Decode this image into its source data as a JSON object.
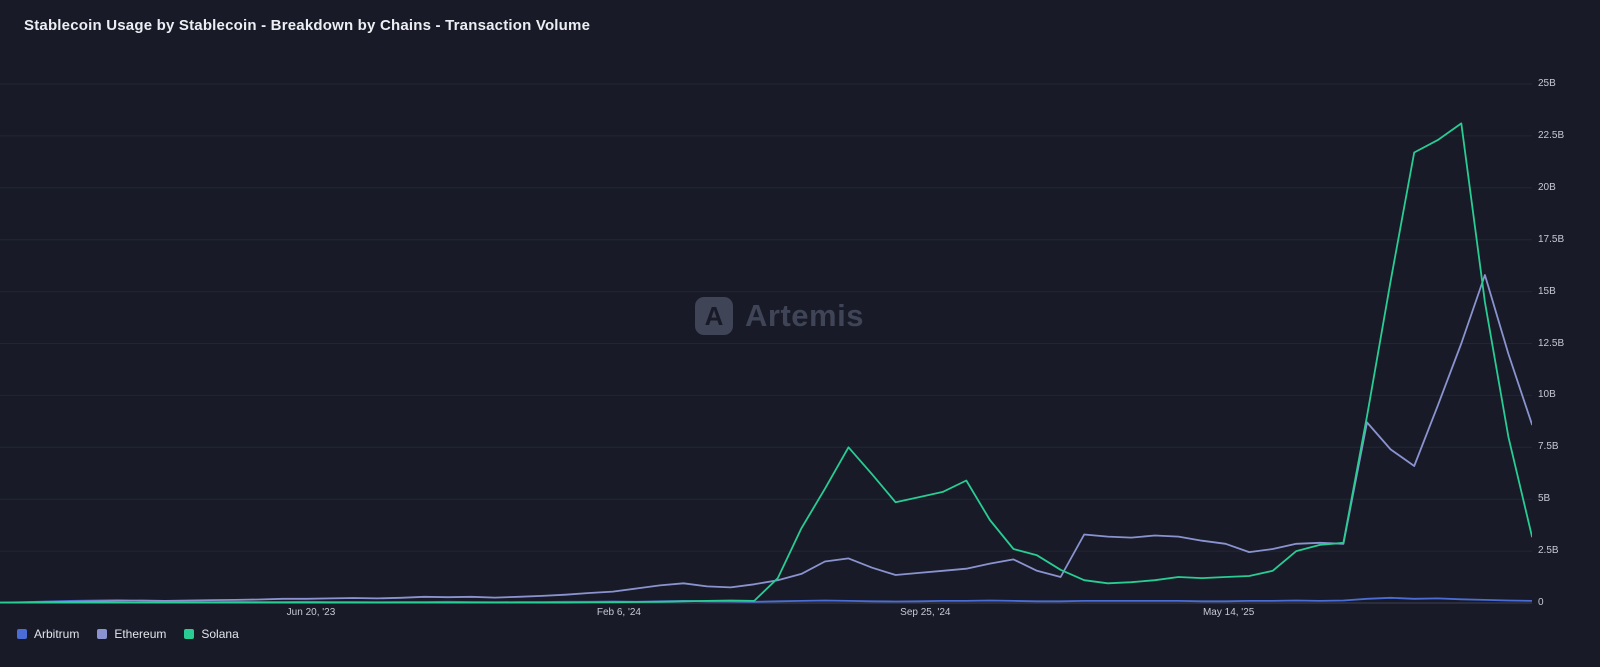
{
  "title": "Stablecoin Usage by Stablecoin - Breakdown by Chains - Transaction Volume",
  "watermark": {
    "brand": "Artemis",
    "logo_letter": "A"
  },
  "chart_data": {
    "type": "line",
    "title": "Stablecoin Usage by Stablecoin - Breakdown by Chains - Transaction Volume",
    "xlabel": "",
    "ylabel": "Transaction Volume",
    "unit": "B",
    "y_max": 25,
    "ylim": [
      0,
      25
    ],
    "grid": true,
    "legend_position": "bottom-left",
    "y_ticks": [
      "0",
      "2.5B",
      "5B",
      "7.5B",
      "10B",
      "12.5B",
      "15B",
      "17.5B",
      "20B",
      "22.5B",
      "25B"
    ],
    "x_ticks": [
      {
        "label": "Jun 20, '23",
        "pos": 0.203
      },
      {
        "label": "Feb 6, '24",
        "pos": 0.404
      },
      {
        "label": "Sep 25, '24",
        "pos": 0.604
      },
      {
        "label": "May 14, '25",
        "pos": 0.802
      }
    ],
    "series": [
      {
        "name": "Arbitrum",
        "color": "#4a6cd4",
        "values": [
          0.02,
          0.04,
          0.07,
          0.1,
          0.12,
          0.14,
          0.1,
          0.08,
          0.06,
          0.05,
          0.06,
          0.05,
          0.05,
          0.06,
          0.05,
          0.05,
          0.04,
          0.05,
          0.05,
          0.06,
          0.05,
          0.04,
          0.05,
          0.05,
          0.06,
          0.06,
          0.07,
          0.06,
          0.08,
          0.1,
          0.08,
          0.07,
          0.06,
          0.08,
          0.1,
          0.12,
          0.1,
          0.08,
          0.07,
          0.08,
          0.1,
          0.1,
          0.12,
          0.1,
          0.08,
          0.08,
          0.1,
          0.1,
          0.1,
          0.1,
          0.1,
          0.08,
          0.08,
          0.1,
          0.1,
          0.12,
          0.1,
          0.12,
          0.2,
          0.25,
          0.2,
          0.22,
          0.18,
          0.15,
          0.12,
          0.1
        ]
      },
      {
        "name": "Ethereum",
        "color": "#8a93cf",
        "values": [
          0.02,
          0.03,
          0.05,
          0.06,
          0.08,
          0.1,
          0.12,
          0.1,
          0.12,
          0.14,
          0.15,
          0.17,
          0.2,
          0.2,
          0.22,
          0.24,
          0.22,
          0.25,
          0.3,
          0.28,
          0.3,
          0.26,
          0.3,
          0.34,
          0.4,
          0.48,
          0.55,
          0.7,
          0.85,
          0.95,
          0.8,
          0.75,
          0.9,
          1.1,
          1.4,
          2.0,
          2.15,
          1.7,
          1.35,
          1.45,
          1.55,
          1.65,
          1.9,
          2.1,
          1.55,
          1.25,
          3.3,
          3.2,
          3.15,
          3.25,
          3.2,
          3.0,
          2.85,
          2.45,
          2.6,
          2.85,
          2.9,
          2.85,
          8.7,
          7.4,
          6.6,
          9.5,
          12.5,
          15.8,
          12.0,
          8.6
        ]
      },
      {
        "name": "Solana",
        "color": "#29cc92",
        "values": [
          0.02,
          0.02,
          0.02,
          0.02,
          0.02,
          0.02,
          0.02,
          0.02,
          0.02,
          0.02,
          0.02,
          0.02,
          0.02,
          0.02,
          0.02,
          0.02,
          0.02,
          0.02,
          0.02,
          0.02,
          0.02,
          0.02,
          0.02,
          0.02,
          0.02,
          0.03,
          0.04,
          0.05,
          0.06,
          0.08,
          0.1,
          0.12,
          0.1,
          1.2,
          3.6,
          5.5,
          7.5,
          6.2,
          4.85,
          5.1,
          5.35,
          5.9,
          4.0,
          2.6,
          2.3,
          1.6,
          1.1,
          0.95,
          1.0,
          1.1,
          1.25,
          1.2,
          1.25,
          1.3,
          1.55,
          2.5,
          2.8,
          2.9,
          9.0,
          15.5,
          21.7,
          22.3,
          23.1,
          14.5,
          8.0,
          3.2
        ]
      }
    ]
  }
}
